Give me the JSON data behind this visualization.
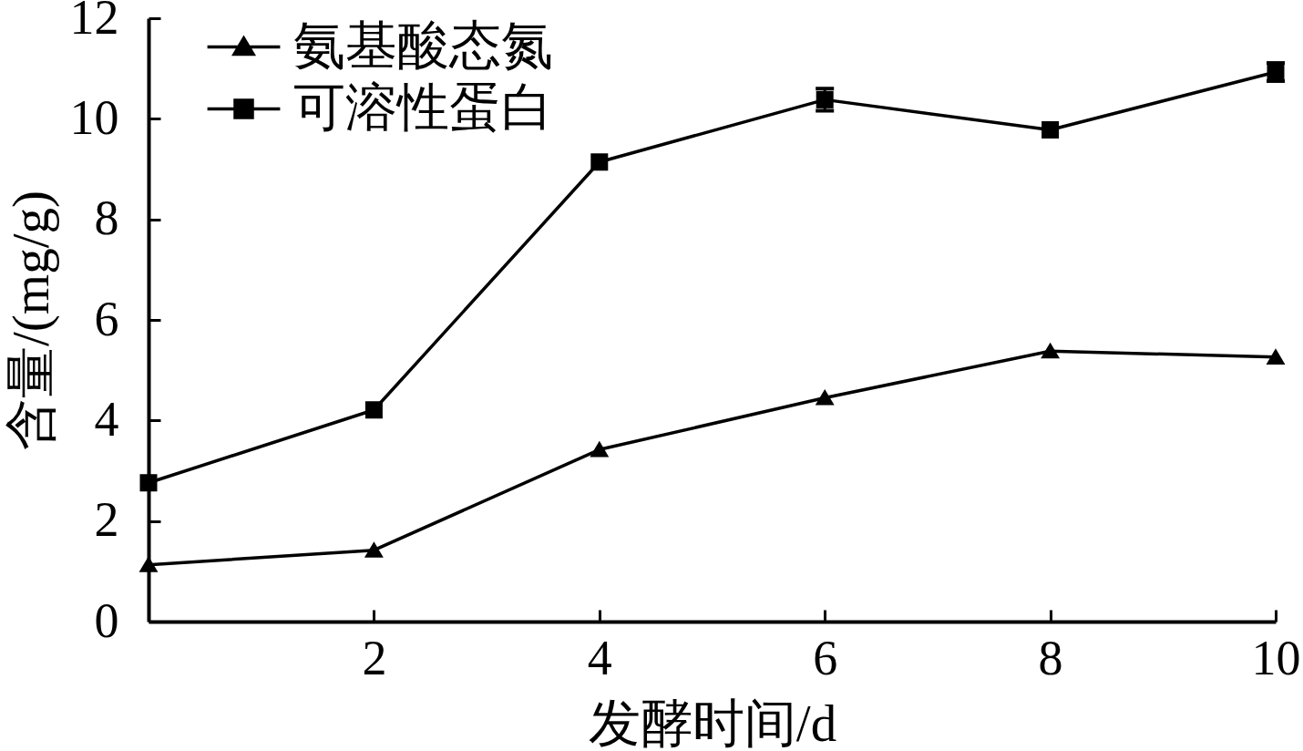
{
  "chart_data": {
    "type": "line",
    "xlabel": "发酵时间/d",
    "ylabel": "含量/(mg/g)",
    "x": [
      0,
      2,
      4,
      6,
      8,
      10
    ],
    "xlim": [
      0,
      10
    ],
    "xticks": [
      2,
      4,
      6,
      8,
      10
    ],
    "ylim": [
      0,
      12
    ],
    "yticks": [
      0,
      2,
      4,
      6,
      8,
      10,
      12
    ],
    "legend": "top left",
    "series": [
      {
        "name": "氨基酸态氮",
        "color": "#000000",
        "marker": "triangle",
        "values": [
          1.13,
          1.42,
          3.42,
          4.45,
          5.38,
          5.26
        ]
      },
      {
        "name": "可溶性蛋白",
        "color": "#000000",
        "marker": "square",
        "values": [
          2.76,
          4.21,
          9.14,
          10.38,
          9.78,
          10.93
        ],
        "errors": [
          null,
          null,
          null,
          0.22,
          null,
          0.18
        ]
      }
    ]
  }
}
